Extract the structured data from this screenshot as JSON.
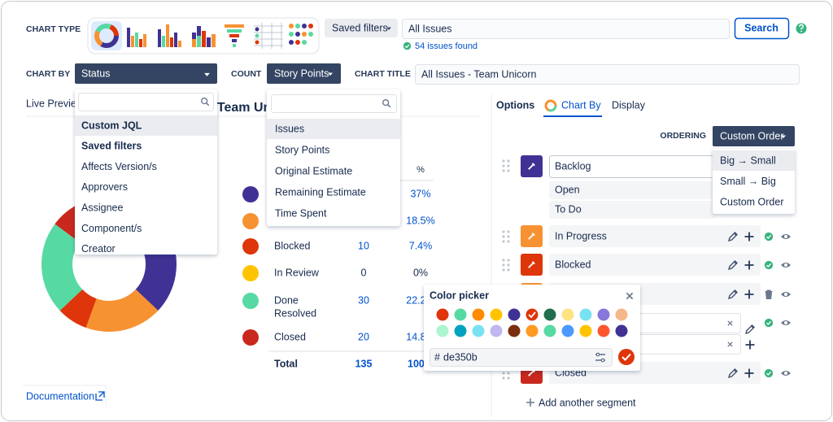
{
  "toolbar": {
    "chart_type_label": "CHART TYPE",
    "saved_filters": "Saved filters",
    "search_query": "All Issues",
    "search_button": "Search",
    "issues_found": "54 issues found",
    "chart_by_label": "CHART BY",
    "chart_by_value": "Status",
    "count_label": "COUNT",
    "count_value": "Story Points",
    "chart_title_label": "CHART TITLE",
    "chart_title_value": "All Issues - Team Unicorn"
  },
  "chart_by_menu": {
    "items": [
      "Custom JQL",
      "Saved filters",
      "Affects Version/s",
      "Approvers",
      "Assignee",
      "Component/s",
      "Creator"
    ]
  },
  "count_menu": {
    "items": [
      "Issues",
      "Story Points",
      "Original Estimate",
      "Remaining Estimate",
      "Time Spent"
    ]
  },
  "preview": {
    "tab": "Live Preview",
    "title": "All Issues - Team Unicorn",
    "documentation": "Documentation"
  },
  "table": {
    "percent_header": "%",
    "rows": [
      {
        "color": "#403294",
        "percent": 37,
        "percent_label": "37%"
      },
      {
        "color": "#f79232",
        "percent": 18.5,
        "percent_label": "18.5%"
      },
      {
        "color": "#de350b",
        "labels": [
          "Blocked"
        ],
        "count": 10,
        "percent": 7.4,
        "percent_label": "7.4%"
      },
      {
        "color": "#ffc400",
        "labels": [
          "In Review"
        ],
        "count": 0,
        "percent": 0,
        "percent_label": "0%"
      },
      {
        "color": "#57d9a3",
        "labels": [
          "Done",
          "Resolved"
        ],
        "count": 30,
        "percent": 22.2,
        "percent_label": "22.2%"
      },
      {
        "color": "#c9281c",
        "labels": [
          "Closed"
        ],
        "count": 20,
        "percent": 14.8,
        "percent_label": "14.8%"
      }
    ],
    "total": {
      "label": "Total",
      "count": 135,
      "percent_label": "100%"
    }
  },
  "options": {
    "tabs": [
      "Options",
      "Chart By",
      "Display"
    ],
    "ordering_label": "ORDERING",
    "ordering_value": "Custom Order",
    "ordering_menu": [
      "Big → Small",
      "Small → Big",
      "Custom Order"
    ],
    "segments": [
      {
        "name": "Backlog",
        "color": "#403294",
        "statuses": [
          "Open",
          "To Do"
        ]
      },
      {
        "name": "In Progress",
        "color": "#f79232"
      },
      {
        "name": "Blocked",
        "color": "#de350b"
      },
      {
        "name": "Closed",
        "color": "#c9281c"
      }
    ],
    "add_segment": "Add another segment"
  },
  "color_picker": {
    "title": "Color picker",
    "hex_prefix": "#",
    "hex": "de350b"
  }
}
